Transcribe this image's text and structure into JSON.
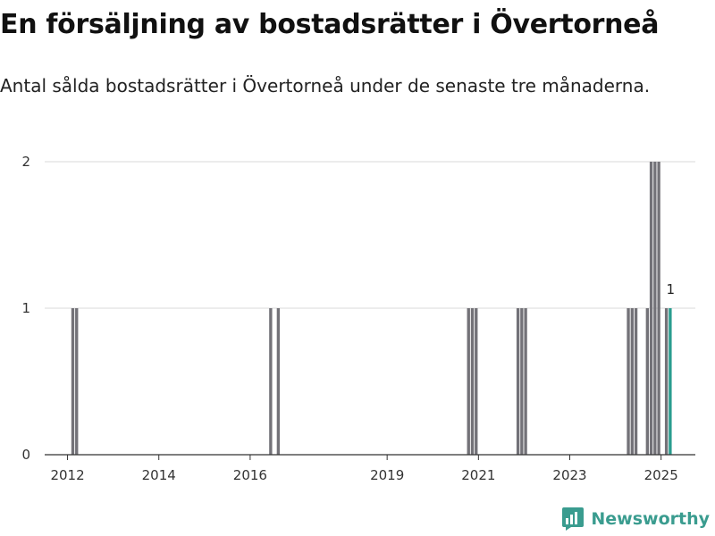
{
  "header": {
    "title": "En försäljning av bostadsrätter i Övertorneå",
    "subtitle": "Antal sålda bostadsrätter i Övertorneå under de senaste tre månaderna."
  },
  "brand": {
    "name": "Newsworthy",
    "icon": "newsworthy-logo-icon",
    "color": "#3a9c8f"
  },
  "colors": {
    "bar": "#737278",
    "highlight": "#2a9d8f",
    "grid": "#d9d9d9",
    "axis": "#333333"
  },
  "chart_data": {
    "type": "bar",
    "title": "En försäljning av bostadsrätter i Övertorneå",
    "subtitle": "Antal sålda bostadsrätter i Övertorneå under de senaste tre månaderna.",
    "xlabel": "",
    "ylabel": "",
    "x_ticks": [
      2012,
      2014,
      2016,
      2019,
      2021,
      2023,
      2025
    ],
    "y_ticks": [
      0,
      1,
      2
    ],
    "ylim": [
      0,
      2
    ],
    "xlim": [
      "2011-07",
      "2025-10"
    ],
    "grid": true,
    "bars": [
      {
        "date": "2012-02",
        "value": 1
      },
      {
        "date": "2012-03",
        "value": 1
      },
      {
        "date": "2016-06",
        "value": 1
      },
      {
        "date": "2016-08",
        "value": 1
      },
      {
        "date": "2020-10",
        "value": 1
      },
      {
        "date": "2020-11",
        "value": 1
      },
      {
        "date": "2020-12",
        "value": 1
      },
      {
        "date": "2021-11",
        "value": 1
      },
      {
        "date": "2021-12",
        "value": 1
      },
      {
        "date": "2022-01",
        "value": 1
      },
      {
        "date": "2024-04",
        "value": 1
      },
      {
        "date": "2024-05",
        "value": 1
      },
      {
        "date": "2024-06",
        "value": 1
      },
      {
        "date": "2024-09",
        "value": 1
      },
      {
        "date": "2024-10",
        "value": 2
      },
      {
        "date": "2024-11",
        "value": 2
      },
      {
        "date": "2024-12",
        "value": 2
      },
      {
        "date": "2025-02",
        "value": 1
      },
      {
        "date": "2025-03",
        "value": 1
      }
    ],
    "highlight": {
      "date": "2025-03",
      "value": 1,
      "label": "1"
    }
  }
}
